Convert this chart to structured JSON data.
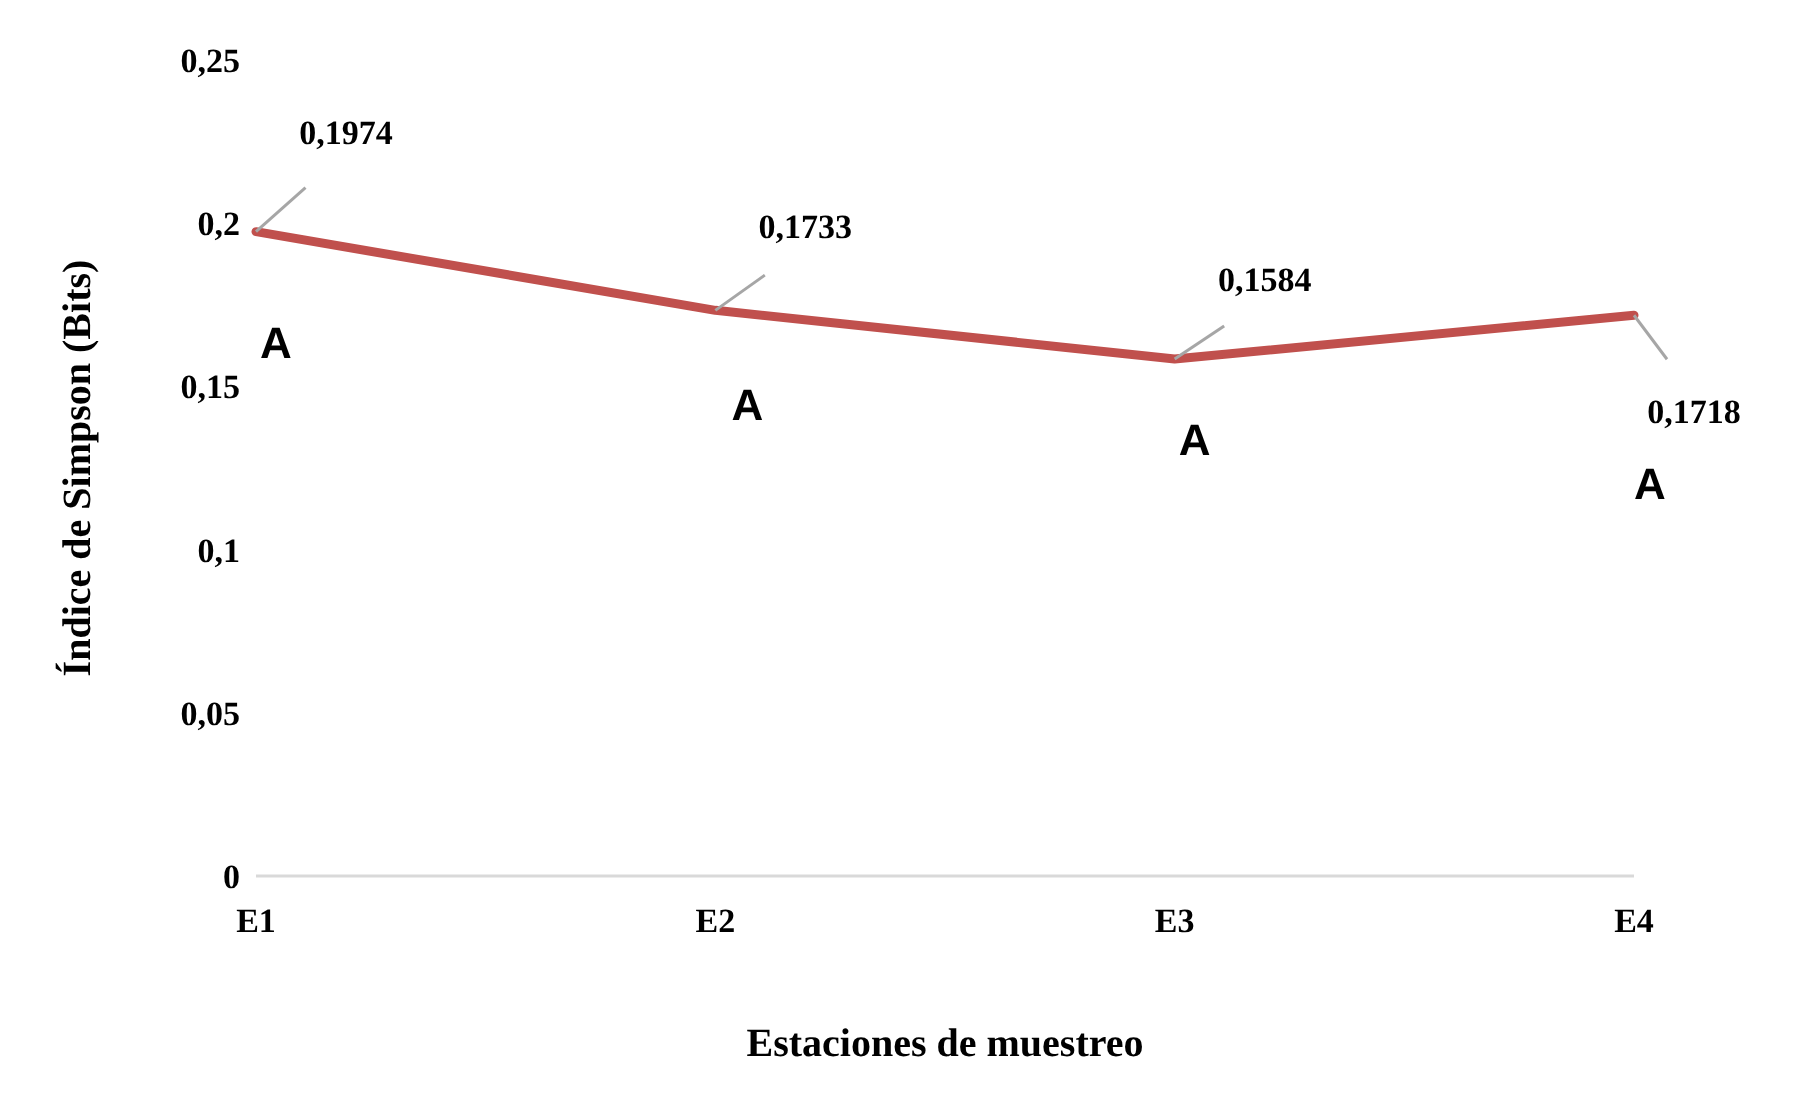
{
  "chart_data": {
    "type": "line",
    "xlabel": "Estaciones de muestreo",
    "ylabel": "Índice de Simpson (Bits)",
    "categories": [
      "E1",
      "E2",
      "E3",
      "E4"
    ],
    "series": [
      {
        "color": "#c0504d",
        "values": [
          0.1974,
          0.1733,
          0.1584,
          0.1718
        ],
        "value_labels": [
          "0,1974",
          "0,1733",
          "0,1584",
          "0,1718"
        ]
      }
    ],
    "ylim": [
      0,
      0.25
    ],
    "yticks": [
      0,
      {
        "value": 0.05,
        "label": "0,05"
      },
      {
        "value": 0.1,
        "label": "0,1"
      },
      {
        "value": 0.15,
        "label": "0,15"
      },
      {
        "value": 0.2,
        "label": "0,2"
      },
      {
        "value": 0.25,
        "label": "0,25"
      }
    ],
    "annotations": [
      "A",
      "A",
      "A",
      "A"
    ],
    "grid": false,
    "legend": false,
    "marker": "none",
    "line_style": "solid"
  }
}
